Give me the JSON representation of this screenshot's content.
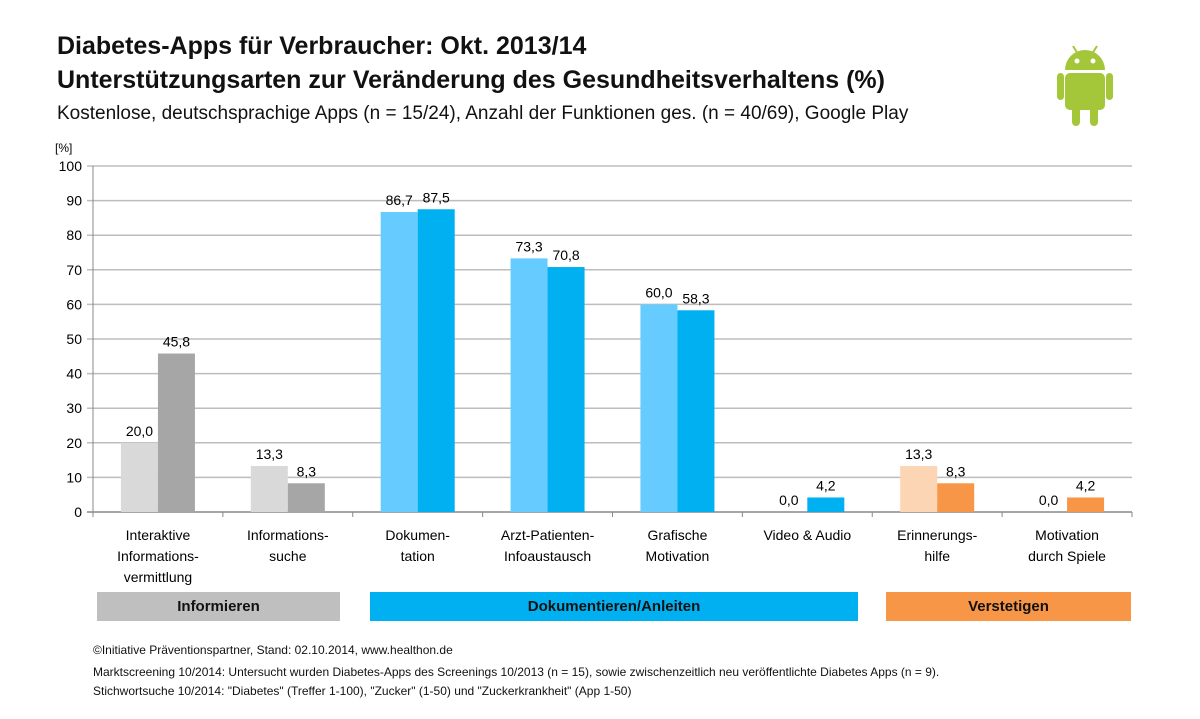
{
  "title": "Diabetes-Apps für Verbraucher: Okt. 2013/14",
  "subtitle": "Unterstützungsarten zur Veränderung des Gesundheitsverhaltens (%)",
  "description": "Kostenlose, deutschsprachige Apps (n = 15/24), Anzahl der Funktionen ges. (n = 40/69), Google Play",
  "logo": "android-robot",
  "chart_data": {
    "type": "bar",
    "ylabel": "[%]",
    "ylim": [
      0,
      100
    ],
    "yticks": [
      0,
      10,
      20,
      30,
      40,
      50,
      60,
      70,
      80,
      90,
      100
    ],
    "grid": true,
    "categories": [
      [
        "Interaktive",
        "Informations-",
        "vermittlung"
      ],
      [
        "Informations-",
        "suche"
      ],
      [
        "Dokumen-",
        "tation"
      ],
      [
        "Arzt-Patienten-",
        "Infoaustausch"
      ],
      [
        "Grafische",
        "Motivation"
      ],
      [
        "Video & Audio"
      ],
      [
        "Erinnerungs-",
        "hilfe"
      ],
      [
        "Motivation",
        "durch Spiele"
      ]
    ],
    "series": [
      {
        "values": [
          20.0,
          13.3,
          86.7,
          73.3,
          60.0,
          0.0,
          13.3,
          0.0
        ],
        "labels": [
          "20,0",
          "13,3",
          "86,7",
          "73,3",
          "60,0",
          "0,0",
          "13,3",
          "0,0"
        ]
      },
      {
        "values": [
          45.8,
          8.3,
          87.5,
          70.8,
          58.3,
          4.2,
          8.3,
          4.2
        ],
        "labels": [
          "45,8",
          "8,3",
          "87,5",
          "70,8",
          "58,3",
          "4,2",
          "8,3",
          "4,2"
        ]
      }
    ],
    "colors": {
      "light": [
        "#d9d9d9",
        "#d9d9d9",
        "#66ccff",
        "#66ccff",
        "#66ccff",
        "#66ccff",
        "#fcd5b5",
        "#fcd5b5"
      ],
      "dark": [
        "#a6a6a6",
        "#a6a6a6",
        "#00b0f0",
        "#00b0f0",
        "#00b0f0",
        "#00b0f0",
        "#f79646",
        "#f79646"
      ]
    },
    "groups": [
      {
        "label": "Informieren",
        "color": "#bfbfbf"
      },
      {
        "label": "Dokumentieren/Anleiten",
        "color": "#00b0f0"
      },
      {
        "label": "Verstetigen",
        "color": "#f79646"
      }
    ]
  },
  "footer": [
    "©Initiative Präventionspartner, Stand: 02.10.2014, www.healthon.de",
    "Marktscreening 10/2014: Untersucht wurden Diabetes-Apps des Screenings 10/2013 (n = 15), sowie zwischenzeitlich neu veröffentlichte Diabetes Apps (n = 9).",
    "Stichwortsuche 10/2014: \"Diabetes\" (Treffer 1-100), \"Zucker\" (1-50) und \"Zuckerkrankheit\" (App 1-50)"
  ]
}
